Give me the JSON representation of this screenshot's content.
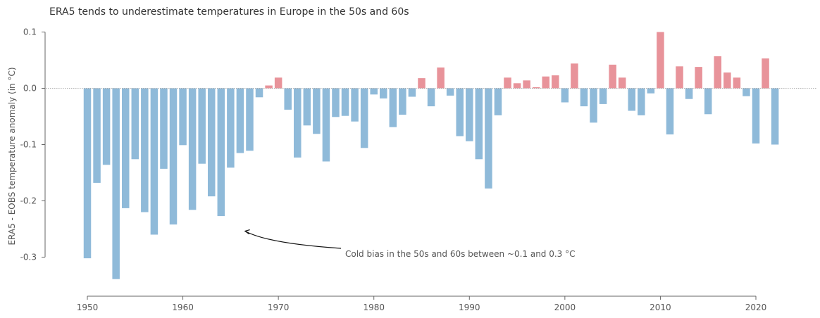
{
  "chart_data": {
    "type": "bar",
    "title": "ERA5 tends to underestimate temperatures in Europe in the 50s and 60s",
    "ylabel": "ERA5 - EOBS temperature anomaly (in °C)",
    "xlabel": "",
    "xlim": [
      1950,
      2020
    ],
    "ylim": [
      -0.35,
      0.1
    ],
    "x_ticks": [
      1950,
      1960,
      1970,
      1980,
      1990,
      2000,
      2010,
      2020
    ],
    "x_tick_labels": [
      "1950",
      "1960",
      "1970",
      "1980",
      "1990",
      "2000",
      "2010",
      "2020"
    ],
    "y_ticks": [
      0.1,
      0.0,
      -0.1,
      -0.2,
      -0.3
    ],
    "y_tick_labels": [
      "0.1",
      "0.0",
      "-0.1",
      "-0.2",
      "-0.3"
    ],
    "colors": {
      "negative": "#8fbad9",
      "positive": "#e8939a",
      "zero_line": "#999999",
      "axis": "#666666"
    },
    "grid": false,
    "x": [
      1950,
      1951,
      1952,
      1953,
      1954,
      1955,
      1956,
      1957,
      1958,
      1959,
      1960,
      1961,
      1962,
      1963,
      1964,
      1965,
      1966,
      1967,
      1968,
      1969,
      1970,
      1971,
      1972,
      1973,
      1974,
      1975,
      1976,
      1977,
      1978,
      1979,
      1980,
      1981,
      1982,
      1983,
      1984,
      1985,
      1986,
      1987,
      1988,
      1989,
      1990,
      1991,
      1992,
      1993,
      1994,
      1995,
      1996,
      1997,
      1998,
      1999,
      2000,
      2001,
      2002,
      2003,
      2004,
      2005,
      2006,
      2007,
      2008,
      2009,
      2010,
      2011,
      2012,
      2013,
      2014,
      2015,
      2016,
      2017,
      2018,
      2019,
      2020,
      2021,
      2022
    ],
    "values": [
      -0.302,
      -0.168,
      -0.136,
      -0.339,
      -0.213,
      -0.126,
      -0.22,
      -0.26,
      -0.143,
      -0.242,
      -0.101,
      -0.216,
      -0.134,
      -0.192,
      -0.227,
      -0.141,
      -0.115,
      -0.111,
      -0.016,
      0.005,
      0.019,
      -0.038,
      -0.123,
      -0.066,
      -0.081,
      -0.13,
      -0.051,
      -0.049,
      -0.059,
      -0.106,
      -0.011,
      -0.018,
      -0.069,
      -0.047,
      -0.015,
      0.018,
      -0.032,
      0.037,
      -0.013,
      -0.085,
      -0.094,
      -0.126,
      -0.178,
      -0.048,
      0.019,
      0.009,
      0.014,
      0.002,
      0.021,
      0.023,
      -0.025,
      0.044,
      -0.032,
      -0.061,
      -0.028,
      0.042,
      0.019,
      -0.04,
      -0.048,
      -0.009,
      0.1,
      -0.082,
      0.039,
      -0.019,
      0.038,
      -0.046,
      0.057,
      0.028,
      0.019,
      -0.014,
      -0.098,
      0.053,
      -0.1
    ],
    "annotation": {
      "text": "Cold bias in the 50s and 60s between ~0.1 and 0.3 °C",
      "points_to": [
        1966,
        -0.25
      ]
    }
  }
}
